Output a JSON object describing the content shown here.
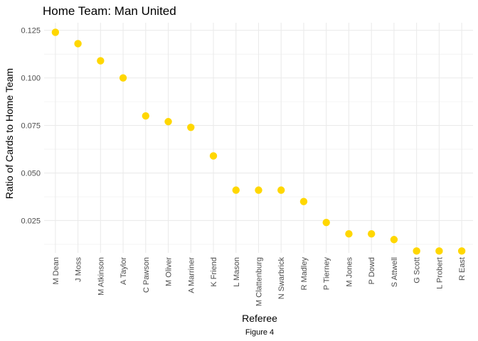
{
  "chart_data": {
    "type": "scatter",
    "title": "Home Team: Man United",
    "xlabel": "Referee",
    "ylabel": "Ratio of Cards to Home Team",
    "caption": "Figure 4",
    "categories": [
      "M Dean",
      "J Moss",
      "M Atkinson",
      "A Taylor",
      "C Pawson",
      "M Oliver",
      "A Marriner",
      "K Friend",
      "L Mason",
      "M Clattenburg",
      "N Swarbrick",
      "R Madley",
      "P Tierney",
      "M Jones",
      "P Dowd",
      "S Attwell",
      "G Scott",
      "L Probert",
      "R East"
    ],
    "series": [
      {
        "values": [
          0.124,
          0.118,
          0.109,
          0.1,
          0.08,
          0.077,
          0.074,
          0.059,
          0.041,
          0.041,
          0.041,
          0.035,
          0.024,
          0.018,
          0.018,
          0.015,
          0.009,
          0.009,
          0.009
        ]
      }
    ],
    "ylim": [
      0.008,
      0.129
    ],
    "yticks": [
      0.025,
      0.05,
      0.075,
      0.1,
      0.125
    ],
    "ytick_labels": [
      "0.025",
      "0.050",
      "0.075",
      "0.100",
      "0.125"
    ],
    "grid": true,
    "point_color": "#FFD700",
    "grid_color": "#EBEBEB"
  }
}
